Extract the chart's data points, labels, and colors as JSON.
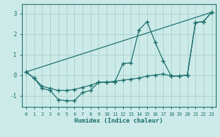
{
  "xlabel": "Humidex (Indice chaleur)",
  "bg_color": "#cceae7",
  "grid_color": "#aad4d0",
  "line_color": "#1a6e6e",
  "xlim": [
    -0.5,
    23.5
  ],
  "ylim": [
    -1.55,
    3.45
  ],
  "line1_x": [
    0,
    1,
    2,
    3,
    4,
    5,
    6,
    7,
    8,
    9,
    10,
    11,
    12,
    13,
    14,
    15,
    16,
    17,
    18,
    19,
    20,
    21,
    22,
    23
  ],
  "line1_y": [
    0.15,
    -0.15,
    -0.65,
    -0.75,
    -1.2,
    -1.25,
    -1.25,
    -0.85,
    -0.75,
    -0.35,
    -0.35,
    -0.35,
    0.55,
    0.6,
    2.2,
    2.6,
    1.6,
    0.7,
    -0.05,
    -0.05,
    0.0,
    2.55,
    2.6,
    3.05
  ],
  "line2_x": [
    0,
    23
  ],
  "line2_y": [
    0.15,
    3.05
  ],
  "line3_x": [
    0,
    1,
    2,
    3,
    4,
    5,
    6,
    7,
    8,
    9,
    10,
    11,
    12,
    13,
    14,
    15,
    16,
    17,
    18,
    19,
    20,
    21,
    22,
    23
  ],
  "line3_y": [
    0.15,
    -0.15,
    -0.55,
    -0.65,
    -0.75,
    -0.75,
    -0.7,
    -0.6,
    -0.5,
    -0.35,
    -0.35,
    -0.3,
    -0.25,
    -0.2,
    -0.15,
    -0.05,
    0.0,
    0.05,
    -0.05,
    -0.05,
    0.0,
    2.55,
    2.6,
    3.05
  ],
  "yticks": [
    -1,
    0,
    1,
    2,
    3
  ],
  "xticks": [
    0,
    1,
    2,
    3,
    4,
    5,
    6,
    7,
    8,
    9,
    10,
    11,
    12,
    13,
    14,
    15,
    16,
    17,
    18,
    19,
    20,
    21,
    22,
    23
  ]
}
